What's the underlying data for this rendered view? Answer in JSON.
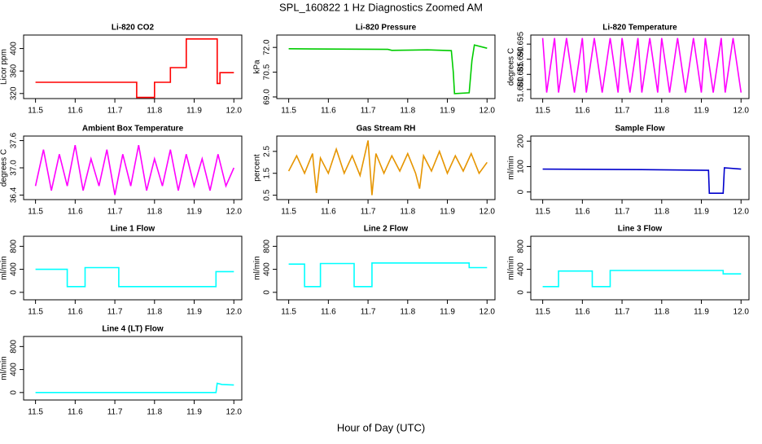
{
  "title": "SPL_160822  1 Hz Diagnostics Zoomed AM",
  "xlabel": "Hour of Day (UTC)",
  "chart_data": [
    {
      "type": "line",
      "title": "Li-820 CO2",
      "ylabel": "Licor ppm",
      "xlim": [
        11.47,
        12.02
      ],
      "ylim": [
        311,
        424
      ],
      "xticks": [
        11.5,
        11.6,
        11.7,
        11.8,
        11.9,
        {
          "value": 12,
          "label": "12.0"
        }
      ],
      "yticks": [
        320,
        360,
        400
      ],
      "series": [
        {
          "name": "Li-820 CO2",
          "color": "#ff0000",
          "x": [
            11.5,
            11.755,
            11.755,
            11.8,
            11.8,
            11.84,
            11.84,
            11.88,
            11.88,
            11.958,
            11.958,
            11.965,
            11.965,
            12.0
          ],
          "values": [
            340,
            340,
            313,
            313,
            340,
            340,
            366,
            366,
            417,
            417,
            338,
            338,
            357,
            357
          ]
        }
      ]
    },
    {
      "type": "line",
      "title": "Li-820 Pressure",
      "ylabel": "kPa",
      "xlim": [
        11.47,
        12.02
      ],
      "ylim": [
        68.9,
        72.75
      ],
      "xticks": [
        11.5,
        11.6,
        11.7,
        11.8,
        11.9,
        {
          "value": 12,
          "label": "12.0"
        }
      ],
      "yticks": [
        {
          "value": 69,
          "label": "69.0"
        },
        70.5,
        {
          "value": 72,
          "label": "72.0"
        }
      ],
      "series": [
        {
          "name": "Li-820 Pressure",
          "color": "#00cc00",
          "x": [
            11.5,
            11.6,
            11.75,
            11.76,
            11.85,
            11.91,
            11.915,
            11.918,
            11.955,
            11.962,
            11.968,
            12.0
          ],
          "values": [
            71.92,
            71.9,
            71.88,
            71.82,
            71.85,
            71.8,
            70.5,
            69.2,
            69.25,
            71.2,
            72.15,
            71.95
          ]
        }
      ]
    },
    {
      "type": "line",
      "title": "Li-820 Temperature",
      "ylabel": "degrees C",
      "xlim": [
        11.47,
        12.02
      ],
      "ylim": [
        51.677,
        51.698
      ],
      "xticks": [
        11.5,
        11.6,
        11.7,
        11.8,
        11.9,
        {
          "value": 12,
          "label": "12.0"
        }
      ],
      "yticks": [
        {
          "value": 51.68,
          "label": "51.680"
        },
        51.685,
        {
          "value": 51.69,
          "label": "51.690"
        },
        51.695
      ],
      "series": [
        {
          "name": "Li-820 Temperature",
          "color": "#ff00ff",
          "x": [
            11.5,
            11.51,
            11.53,
            11.54,
            11.56,
            11.58,
            11.6,
            11.61,
            11.63,
            11.65,
            11.67,
            11.69,
            11.7,
            11.72,
            11.74,
            11.75,
            11.77,
            11.79,
            11.8,
            11.82,
            11.84,
            11.86,
            11.88,
            11.9,
            11.91,
            11.93,
            11.95,
            11.96,
            11.98,
            12.0
          ],
          "values": [
            51.697,
            51.679,
            51.697,
            51.679,
            51.697,
            51.679,
            51.697,
            51.679,
            51.697,
            51.679,
            51.697,
            51.679,
            51.697,
            51.679,
            51.697,
            51.679,
            51.697,
            51.679,
            51.697,
            51.679,
            51.697,
            51.679,
            51.697,
            51.679,
            51.697,
            51.679,
            51.697,
            51.679,
            51.697,
            51.679
          ]
        }
      ]
    },
    {
      "type": "line",
      "title": "Ambient Box Temperature",
      "ylabel": "degrees C",
      "xlim": [
        11.47,
        12.02
      ],
      "ylim": [
        36.3,
        37.7
      ],
      "xticks": [
        11.5,
        11.6,
        11.7,
        11.8,
        11.9,
        {
          "value": 12,
          "label": "12.0"
        }
      ],
      "yticks": [
        36.4,
        {
          "value": 37,
          "label": "37.0"
        },
        37.6
      ],
      "series": [
        {
          "name": "Ambient Box Temperature",
          "color": "#ff00ff",
          "x": [
            11.5,
            11.52,
            11.54,
            11.56,
            11.58,
            11.6,
            11.62,
            11.64,
            11.66,
            11.68,
            11.7,
            11.72,
            11.74,
            11.76,
            11.78,
            11.8,
            11.82,
            11.84,
            11.86,
            11.88,
            11.9,
            11.92,
            11.94,
            11.96,
            11.98,
            12.0
          ],
          "values": [
            36.6,
            37.4,
            36.5,
            37.3,
            36.6,
            37.5,
            36.5,
            37.2,
            36.6,
            37.4,
            36.4,
            37.3,
            36.6,
            37.5,
            36.5,
            37.2,
            36.6,
            37.4,
            36.5,
            37.3,
            36.6,
            37.2,
            36.5,
            37.3,
            36.6,
            37.0
          ]
        }
      ]
    },
    {
      "type": "line",
      "title": "Gas Stream RH",
      "ylabel": "percent",
      "xlim": [
        11.47,
        12.02
      ],
      "ylim": [
        0.3,
        3.2
      ],
      "xticks": [
        11.5,
        11.6,
        11.7,
        11.8,
        11.9,
        {
          "value": 12,
          "label": "12.0"
        }
      ],
      "yticks": [
        0.5,
        1.5,
        2.5
      ],
      "series": [
        {
          "name": "Gas Stream RH",
          "color": "#e69500",
          "x": [
            11.5,
            11.52,
            11.54,
            11.56,
            11.57,
            11.58,
            11.6,
            11.62,
            11.64,
            11.66,
            11.68,
            11.7,
            11.71,
            11.72,
            11.74,
            11.76,
            11.78,
            11.8,
            11.82,
            11.83,
            11.84,
            11.86,
            11.88,
            11.9,
            11.92,
            11.94,
            11.96,
            11.98,
            12.0
          ],
          "values": [
            1.6,
            2.3,
            1.5,
            2.4,
            0.6,
            2.2,
            1.5,
            2.6,
            1.5,
            2.3,
            1.4,
            3.0,
            0.5,
            2.4,
            1.5,
            2.3,
            1.6,
            2.4,
            1.5,
            0.8,
            2.3,
            1.6,
            2.5,
            1.5,
            2.3,
            1.6,
            2.4,
            1.5,
            2.0
          ]
        }
      ]
    },
    {
      "type": "line",
      "title": "Sample Flow",
      "ylabel": "ml/min",
      "xlim": [
        11.47,
        12.02
      ],
      "ylim": [
        -30,
        220
      ],
      "xticks": [
        11.5,
        11.6,
        11.7,
        11.8,
        11.9,
        {
          "value": 12,
          "label": "12.0"
        }
      ],
      "yticks": [
        0,
        100,
        200
      ],
      "series": [
        {
          "name": "Sample Flow",
          "color": "#0000cc",
          "x": [
            11.5,
            11.75,
            11.918,
            11.92,
            11.955,
            11.958,
            12.0
          ],
          "values": [
            90,
            88,
            85,
            -5,
            -5,
            95,
            90
          ]
        }
      ]
    },
    {
      "type": "line",
      "title": "Line 1 Flow",
      "ylabel": "ml/min",
      "xlim": [
        11.47,
        12.02
      ],
      "ylim": [
        -130,
        975
      ],
      "xticks": [
        11.5,
        11.6,
        11.7,
        11.8,
        11.9,
        {
          "value": 12,
          "label": "12.0"
        }
      ],
      "yticks": [
        0,
        400,
        800
      ],
      "series": [
        {
          "name": "Line 1 Flow",
          "color": "#00ffff",
          "x": [
            11.5,
            11.58,
            11.58,
            11.625,
            11.625,
            11.71,
            11.71,
            11.955,
            11.955,
            12.0
          ],
          "values": [
            400,
            400,
            100,
            100,
            430,
            430,
            100,
            100,
            360,
            360
          ]
        }
      ]
    },
    {
      "type": "line",
      "title": "Line 2 Flow",
      "ylabel": "ml/min",
      "xlim": [
        11.47,
        12.02
      ],
      "ylim": [
        -130,
        975
      ],
      "xticks": [
        11.5,
        11.6,
        11.7,
        11.8,
        11.9,
        {
          "value": 12,
          "label": "12.0"
        }
      ],
      "yticks": [
        0,
        400,
        800
      ],
      "series": [
        {
          "name": "Line 2 Flow",
          "color": "#00ffff",
          "x": [
            11.5,
            11.54,
            11.54,
            11.58,
            11.58,
            11.665,
            11.665,
            11.71,
            11.71,
            11.955,
            11.955,
            12.0
          ],
          "values": [
            490,
            490,
            100,
            100,
            500,
            500,
            100,
            100,
            510,
            510,
            430,
            430
          ]
        }
      ]
    },
    {
      "type": "line",
      "title": "Line 3 Flow",
      "ylabel": "ml/min",
      "xlim": [
        11.47,
        12.02
      ],
      "ylim": [
        -130,
        975
      ],
      "xticks": [
        11.5,
        11.6,
        11.7,
        11.8,
        11.9,
        {
          "value": 12,
          "label": "12.0"
        }
      ],
      "yticks": [
        0,
        400,
        800
      ],
      "series": [
        {
          "name": "Line 3 Flow",
          "color": "#00ffff",
          "x": [
            11.5,
            11.54,
            11.54,
            11.625,
            11.625,
            11.67,
            11.67,
            11.955,
            11.955,
            12.0
          ],
          "values": [
            100,
            100,
            370,
            370,
            100,
            100,
            380,
            380,
            320,
            320
          ]
        }
      ]
    },
    {
      "type": "line",
      "title": "Line 4 (LT) Flow",
      "ylabel": "ml/min",
      "xlim": [
        11.47,
        12.02
      ],
      "ylim": [
        -130,
        975
      ],
      "xticks": [
        11.5,
        11.6,
        11.7,
        11.8,
        11.9,
        {
          "value": 12,
          "label": "12.0"
        }
      ],
      "yticks": [
        0,
        400,
        800
      ],
      "series": [
        {
          "name": "Line 4 (LT) Flow",
          "color": "#00ffff",
          "x": [
            11.5,
            11.955,
            11.958,
            11.97,
            12.0
          ],
          "values": [
            0,
            0,
            160,
            140,
            130
          ]
        }
      ]
    }
  ]
}
